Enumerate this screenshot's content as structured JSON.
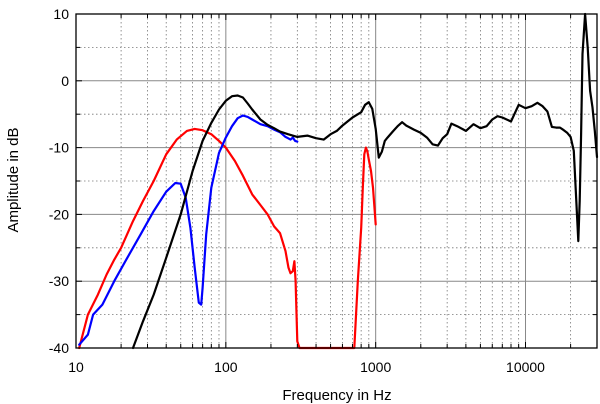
{
  "chart_data": {
    "type": "line",
    "xlabel": "Frequency in Hz",
    "ylabel": "Amplitude in dB",
    "xscale": "log",
    "xlim": [
      10,
      30000
    ],
    "ylim": [
      -40,
      10
    ],
    "grid": true,
    "x_tick_labels": [
      {
        "value": 10,
        "label": "10"
      },
      {
        "value": 100,
        "label": "100"
      },
      {
        "value": 1000,
        "label": "1000"
      },
      {
        "value": 10000,
        "label": "10000"
      }
    ],
    "y_tick_labels": [
      {
        "value": 10,
        "label": "10"
      },
      {
        "value": 0,
        "label": "0"
      },
      {
        "value": -10,
        "label": "-10"
      },
      {
        "value": -20,
        "label": "-20"
      },
      {
        "value": -30,
        "label": "-30"
      },
      {
        "value": -40,
        "label": "-40"
      }
    ],
    "series": [
      {
        "color": "#ff0000",
        "x": [
          10.5,
          12,
          14,
          16,
          18,
          20,
          24,
          28,
          33,
          40,
          47,
          55,
          62,
          70,
          80,
          90,
          100,
          115,
          130,
          150,
          170,
          190,
          210,
          230,
          250,
          262,
          270,
          280,
          287,
          292,
          300,
          310,
          320,
          340,
          360,
          400,
          440,
          480,
          520,
          560,
          600,
          640,
          680,
          720,
          760,
          800,
          820,
          840,
          860,
          880,
          900,
          930,
          960,
          1000
        ],
        "y": [
          -40,
          -35,
          -32,
          -29,
          -26.8,
          -25,
          -21,
          -18,
          -15,
          -11,
          -8.8,
          -7.5,
          -7.2,
          -7.4,
          -8,
          -9,
          -10,
          -12,
          -14.2,
          -17,
          -18.6,
          -20,
          -21.8,
          -22.8,
          -25.5,
          -28,
          -28.8,
          -28.5,
          -27,
          -30,
          -39,
          -40,
          -40,
          -40,
          -40,
          -40,
          -40,
          -40,
          -40,
          -40,
          -40,
          -40,
          -40,
          -40,
          -30,
          -22,
          -16,
          -11,
          -10,
          -10.6,
          -11.8,
          -13.5,
          -16,
          -21.5
        ]
      },
      {
        "color": "#0000ff",
        "x": [
          10.5,
          12,
          13,
          15,
          18,
          22,
          27,
          33,
          40,
          46,
          50,
          54,
          58,
          62,
          66,
          68.5,
          70,
          74,
          80,
          90,
          100,
          110,
          120,
          130,
          140,
          150,
          170,
          190,
          210,
          230,
          250,
          260,
          270,
          280,
          290,
          300
        ],
        "y": [
          -39.5,
          -38,
          -35,
          -33.5,
          -30,
          -26.5,
          -23,
          -19.5,
          -16.6,
          -15.3,
          -15.4,
          -17.5,
          -22,
          -28,
          -33.2,
          -33.5,
          -31,
          -23,
          -16,
          -10.8,
          -8.5,
          -6.8,
          -5.6,
          -5.2,
          -5.4,
          -5.8,
          -6.5,
          -6.8,
          -7.3,
          -7.7,
          -8.4,
          -8.6,
          -8.8,
          -8.5,
          -9,
          -9.1
        ]
      },
      {
        "color": "#000000",
        "x": [
          24,
          28,
          33,
          40,
          50,
          60,
          70,
          80,
          90,
          100,
          110,
          120,
          130,
          140,
          150,
          170,
          190,
          210,
          230,
          260,
          300,
          350,
          400,
          450,
          500,
          550,
          600,
          700,
          800,
          850,
          900,
          950,
          1000,
          1050,
          1100,
          1150,
          1200,
          1300,
          1400,
          1500,
          1600,
          1800,
          2000,
          2200,
          2400,
          2600,
          2800,
          3000,
          3200,
          3500,
          4000,
          4500,
          5000,
          5500,
          6000,
          6500,
          7000,
          8000,
          9000,
          10000,
          11000,
          12000,
          13000,
          14000,
          15000,
          16000,
          17000,
          18000,
          19000,
          20000,
          21000,
          22000,
          22500,
          23000,
          23500,
          24000,
          25000,
          26000,
          27000,
          28000,
          29000,
          30000
        ],
        "y": [
          -40,
          -36,
          -32,
          -26.5,
          -20,
          -13.5,
          -9,
          -6.3,
          -4.3,
          -3,
          -2.3,
          -2.2,
          -2.5,
          -3.4,
          -4.3,
          -5.8,
          -6.6,
          -7.1,
          -7.6,
          -8,
          -8.4,
          -8.2,
          -8.6,
          -8.8,
          -8,
          -7.5,
          -6.7,
          -5.5,
          -4.7,
          -3.6,
          -3.2,
          -4.2,
          -7.2,
          -11.5,
          -10.6,
          -9,
          -8.5,
          -7.6,
          -6.8,
          -6.2,
          -6.7,
          -7.3,
          -7.8,
          -8.5,
          -9.5,
          -9.7,
          -8.6,
          -8,
          -6.4,
          -6.8,
          -7.5,
          -6.5,
          -7.1,
          -6.8,
          -5.8,
          -5.3,
          -5.5,
          -6.1,
          -3.6,
          -4.1,
          -3.8,
          -3.3,
          -3.8,
          -4.6,
          -6.9,
          -7,
          -7,
          -7.4,
          -7.8,
          -8.4,
          -10.5,
          -19.5,
          -24,
          -18,
          -8,
          4,
          10,
          5,
          -1.5,
          -4,
          -7.5,
          -11.4
        ]
      }
    ]
  }
}
